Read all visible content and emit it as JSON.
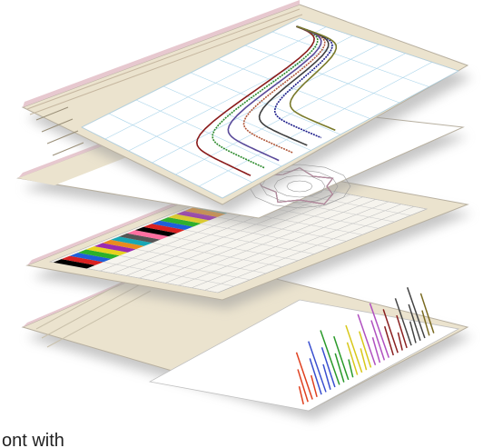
{
  "caption": "ont with",
  "colors": {
    "panel_bg": "#ffffff",
    "app_chrome": "#ebe3ce",
    "title_bar": "#e7c8cf",
    "grid_line": "#a9d4ea",
    "shadow": "#9a9a9a"
  },
  "layers": [
    {
      "name": "line-chart-window",
      "content": "multi-series-curves",
      "series_colors": [
        "#8a1b1b",
        "#2c8a2c",
        "#5a4a9a",
        "#b0583a",
        "#3f3f3f",
        "#1d1d8a",
        "#7a7a2a"
      ]
    },
    {
      "name": "radar-chart-window",
      "content": "radar-web",
      "series_colors": [
        "#c27b7b",
        "#6a6a6a",
        "#b58aa0"
      ]
    },
    {
      "name": "color-table-window",
      "content": "data-table",
      "swatch_colors": [
        "#000000",
        "#d92121",
        "#1f5fd9",
        "#2bb02b",
        "#e6d21f",
        "#9b2bb0",
        "#e88b1f",
        "#18a7b5",
        "#555555",
        "#ff6fa0"
      ]
    },
    {
      "name": "spectrum-chart-window",
      "content": "stick-spectrum",
      "bar_colors": [
        "#e0401f",
        "#3a4fd0",
        "#2a9a2a",
        "#d8c81a",
        "#b050c0",
        "#8a2020",
        "#444444",
        "#7a6a20"
      ]
    }
  ]
}
